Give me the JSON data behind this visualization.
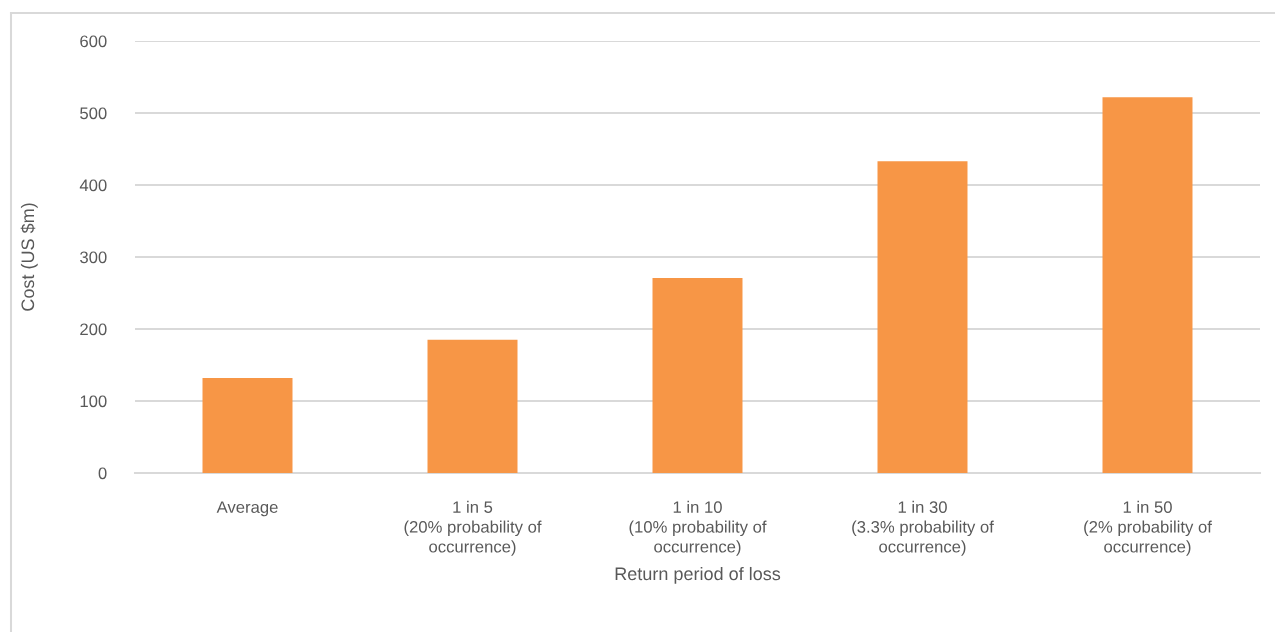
{
  "chart_data": {
    "type": "bar",
    "xlabel": "Return period of loss",
    "ylabel": "Cost (US $m)",
    "categories": [
      "Average",
      "1 in 5\n(20% probability of\noccurrence)",
      "1 in 10\n(10% probability of\noccurrence)",
      "1 in 30\n(3.3% probability of\noccurrence)",
      "1 in 50\n(2% probability of\noccurrence)"
    ],
    "values": [
      132,
      185,
      271,
      433,
      522
    ],
    "color": "#f79646",
    "ylim": [
      0,
      600
    ],
    "yticks": [
      0,
      100,
      200,
      300,
      400,
      500,
      600
    ],
    "grid": "y",
    "legend": false
  }
}
